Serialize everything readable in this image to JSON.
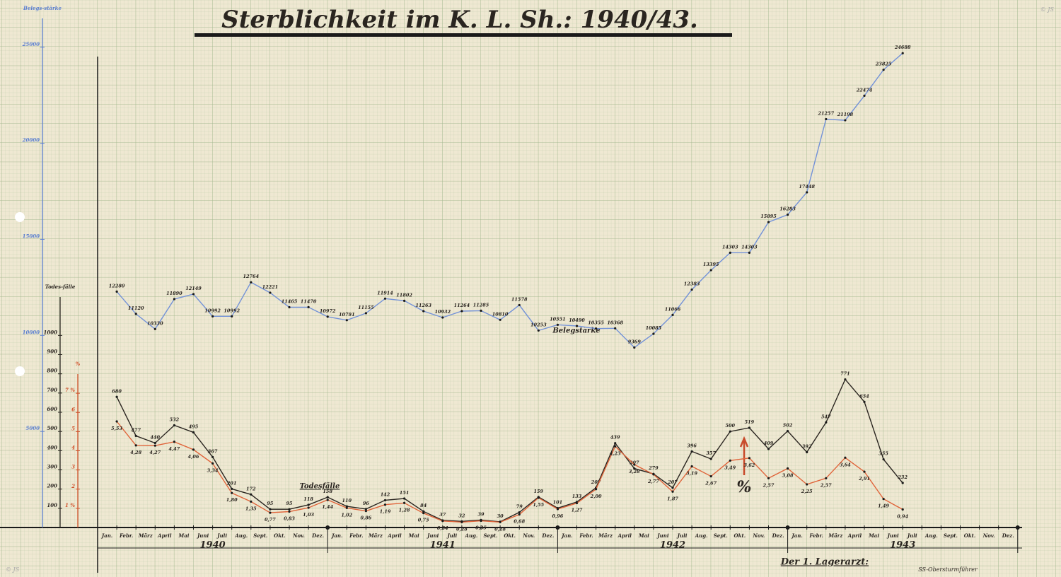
{
  "chart_data": {
    "type": "line",
    "title": "Sterblichkeit im K. L. Sh.: 1940/43.",
    "categories": [
      "Jan.",
      "Febr.",
      "März",
      "April",
      "Mai",
      "Juni",
      "Juli",
      "Aug.",
      "Sept.",
      "Okt.",
      "Nov.",
      "Dez.",
      "Jan.",
      "Febr.",
      "März",
      "April",
      "Mai",
      "Juni",
      "Juli",
      "Aug.",
      "Sept.",
      "Okt.",
      "Nov.",
      "Dez.",
      "Jan.",
      "Febr.",
      "März",
      "April",
      "Mai",
      "Juni",
      "Juli",
      "Aug.",
      "Sept.",
      "Okt.",
      "Nov.",
      "Dez.",
      "Jan.",
      "Febr.",
      "März",
      "April",
      "Mai",
      "Juni",
      "Juli",
      "Aug.",
      "Sept.",
      "Okt.",
      "Nov.",
      "Dez."
    ],
    "years": [
      "1940",
      "1941",
      "1942",
      "1943"
    ],
    "series": [
      {
        "name": "Belegstärke",
        "color": "#7392d8",
        "axis": "y",
        "values": [
          12280,
          11120,
          10330,
          11890,
          12149,
          10992,
          10992,
          12764,
          12221,
          11465,
          11470,
          10972,
          10791,
          11155,
          11914,
          11802,
          11263,
          10932,
          11264,
          11285,
          10810,
          11578,
          10253,
          10551,
          10490,
          10355,
          10368,
          9369,
          10085,
          11066,
          12383,
          13395,
          14303,
          14303,
          15895,
          16283,
          17448,
          21257,
          21198,
          22474,
          23825,
          24688,
          null,
          null,
          null,
          null,
          null,
          null
        ]
      },
      {
        "name": "Todesfälle",
        "color": "#2a2520",
        "axis": "y2",
        "values": [
          680,
          477,
          440,
          532,
          495,
          367,
          201,
          172,
          95,
          95,
          118,
          158,
          110,
          96,
          142,
          151,
          84,
          37,
          32,
          39,
          30,
          79,
          159,
          101,
          133,
          207,
          439,
          307,
          279,
          207,
          396,
          357,
          500,
          519,
          409,
          502,
          392,
          547,
          771,
          654,
          355,
          232,
          null,
          null,
          null,
          null,
          null,
          null
        ]
      },
      {
        "name": "%",
        "color": "#e0643a",
        "axis": "y3",
        "values": [
          5.53,
          4.28,
          4.27,
          4.47,
          4.06,
          3.34,
          1.8,
          1.35,
          0.77,
          0.83,
          1.03,
          1.44,
          1.02,
          0.86,
          1.19,
          1.28,
          0.75,
          0.34,
          0.28,
          0.35,
          0.28,
          0.68,
          1.55,
          0.96,
          1.27,
          2.0,
          4.23,
          3.28,
          2.77,
          1.87,
          3.19,
          2.67,
          3.49,
          3.62,
          2.57,
          3.08,
          2.25,
          2.57,
          3.64,
          2.91,
          1.49,
          0.94,
          null,
          null,
          null,
          null,
          null,
          null
        ],
        "value_labels": [
          "5,53",
          "4,28",
          "4,27",
          "4,47",
          "4,06",
          "3,34",
          "1,80",
          "1,35",
          "0,77",
          "0,83",
          "1,03",
          "1,44",
          "1,02",
          "0,86",
          "1,19",
          "1,28",
          "0,75",
          "0,34",
          "0,28",
          "0,35",
          "0,28",
          "0,68",
          "1,55",
          "0,96",
          "1,27",
          "2,00",
          "4,23",
          "3,28",
          "2,77",
          "1,87",
          "3,19",
          "2,67",
          "3,49",
          "3,62",
          "2,57",
          "3,08",
          "2,25",
          "2,57",
          "3,64",
          "2,91",
          "1,49",
          "0,94",
          null,
          null,
          null,
          null,
          null,
          null
        ]
      }
    ],
    "ylabel": "Belegs-stärke",
    "ylim": [
      0,
      26500
    ],
    "yticks": [
      5000,
      10000,
      15000,
      20000,
      25000
    ],
    "y2label": "Todes-fälle",
    "y2lim": [
      0,
      1200
    ],
    "y2ticks": [
      100,
      200,
      300,
      400,
      500,
      600,
      700,
      800,
      900,
      1000
    ],
    "y3label": "%",
    "y3lim": [
      0,
      8
    ],
    "y3ticks": [
      {
        "value": 1,
        "label": "1 %"
      },
      2,
      3,
      4,
      5,
      6,
      {
        "value": 7,
        "label": "7 %"
      }
    ],
    "grid": true,
    "signature": "Der 1. Lagerarzt:",
    "rank": "SS-Obersturmführer",
    "watermark": "© JS"
  }
}
